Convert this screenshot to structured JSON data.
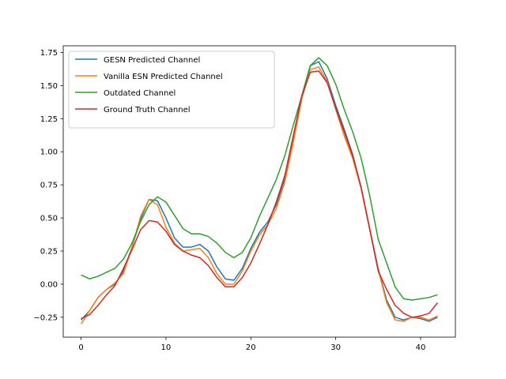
{
  "chart_data": {
    "type": "line",
    "title": "",
    "xlabel": "",
    "ylabel": "",
    "xlim": [
      -2.1,
      44.1
    ],
    "ylim": [
      -0.4,
      1.8
    ],
    "xticks": [
      0,
      10,
      20,
      30,
      40
    ],
    "yticks": [
      -0.25,
      0.0,
      0.25,
      0.5,
      0.75,
      1.0,
      1.25,
      1.5,
      1.75
    ],
    "ytick_labels": [
      "−0.25",
      "0.00",
      "0.25",
      "0.50",
      "0.75",
      "1.00",
      "1.25",
      "1.50",
      "1.75"
    ],
    "grid": false,
    "legend_position": "upper-left",
    "x": [
      0,
      1,
      2,
      3,
      4,
      5,
      6,
      7,
      8,
      9,
      10,
      11,
      12,
      13,
      14,
      15,
      16,
      17,
      18,
      19,
      20,
      21,
      22,
      23,
      24,
      25,
      26,
      27,
      28,
      29,
      30,
      31,
      32,
      33,
      34,
      35,
      36,
      37,
      38,
      39,
      40,
      41,
      42
    ],
    "series": [
      {
        "name": "GESN Predicted Channel",
        "color": "#1f77b4",
        "values": [
          -0.27,
          -0.2,
          -0.1,
          -0.04,
          0.0,
          0.1,
          0.28,
          0.49,
          0.64,
          0.63,
          0.5,
          0.35,
          0.28,
          0.28,
          0.3,
          0.25,
          0.13,
          0.04,
          0.03,
          0.12,
          0.27,
          0.39,
          0.47,
          0.6,
          0.8,
          1.1,
          1.42,
          1.65,
          1.68,
          1.55,
          1.35,
          1.17,
          0.98,
          0.73,
          0.42,
          0.12,
          -0.12,
          -0.25,
          -0.27,
          -0.25,
          -0.26,
          -0.28,
          -0.25
        ]
      },
      {
        "name": "Vanilla ESN Predicted Channel",
        "color": "#ff7f0e",
        "values": [
          -0.3,
          -0.2,
          -0.1,
          -0.04,
          0.01,
          0.08,
          0.28,
          0.51,
          0.64,
          0.6,
          0.43,
          0.31,
          0.25,
          0.26,
          0.27,
          0.2,
          0.08,
          0.0,
          0.0,
          0.1,
          0.25,
          0.37,
          0.45,
          0.57,
          0.77,
          1.07,
          1.4,
          1.62,
          1.64,
          1.53,
          1.32,
          1.12,
          0.95,
          0.72,
          0.41,
          0.11,
          -0.14,
          -0.27,
          -0.28,
          -0.25,
          -0.25,
          -0.27,
          -0.24
        ]
      },
      {
        "name": "Outdated Channel",
        "color": "#2ca02c",
        "values": [
          0.07,
          0.04,
          0.06,
          0.09,
          0.12,
          0.19,
          0.31,
          0.47,
          0.6,
          0.66,
          0.62,
          0.52,
          0.42,
          0.38,
          0.38,
          0.36,
          0.31,
          0.24,
          0.2,
          0.24,
          0.35,
          0.51,
          0.65,
          0.79,
          0.97,
          1.2,
          1.42,
          1.65,
          1.71,
          1.65,
          1.51,
          1.32,
          1.15,
          0.95,
          0.67,
          0.34,
          0.16,
          -0.02,
          -0.11,
          -0.12,
          -0.11,
          -0.1,
          -0.08
        ]
      },
      {
        "name": "Ground Truth Channel",
        "color": "#d62728",
        "values": [
          -0.26,
          -0.23,
          -0.16,
          -0.08,
          -0.01,
          0.12,
          0.26,
          0.41,
          0.48,
          0.47,
          0.4,
          0.3,
          0.25,
          0.22,
          0.2,
          0.14,
          0.05,
          -0.02,
          -0.02,
          0.05,
          0.16,
          0.3,
          0.45,
          0.62,
          0.82,
          1.12,
          1.42,
          1.6,
          1.61,
          1.52,
          1.33,
          1.15,
          0.97,
          0.73,
          0.42,
          0.1,
          -0.04,
          -0.16,
          -0.22,
          -0.25,
          -0.24,
          -0.22,
          -0.14
        ]
      }
    ]
  }
}
